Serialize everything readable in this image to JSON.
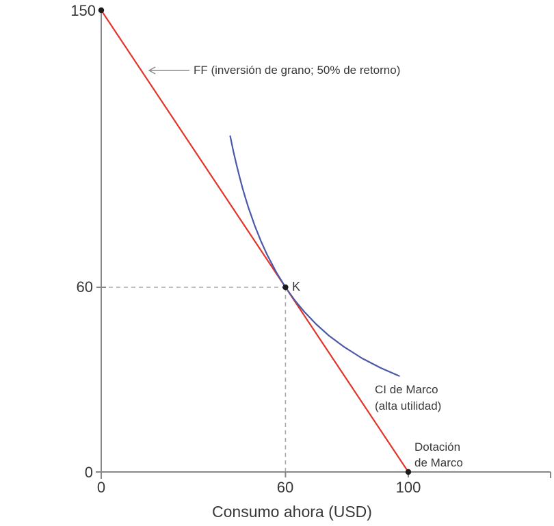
{
  "figure": {
    "background": "#ffffff",
    "text_color": "#383838",
    "axis_color": "#878787",
    "guide_color": "#a8a8a8",
    "marker_color": "#1c1c1c"
  },
  "chart_data": {
    "type": "line",
    "title": "",
    "xlabel": "Consumo ahora (USD)",
    "ylabel": "",
    "xlim": [
      0,
      146
    ],
    "ylim": [
      0,
      150
    ],
    "grid": false,
    "legend_position": "none",
    "x_ticks": [
      {
        "value": 0,
        "label": "0"
      },
      {
        "value": 60,
        "label": "60"
      },
      {
        "value": 100,
        "label": "100"
      }
    ],
    "y_ticks": [
      {
        "value": 0,
        "label": "0",
        "tick": true
      },
      {
        "value": 60,
        "label": "60",
        "tick": true
      },
      {
        "value": 150,
        "label": "150",
        "tick": false
      }
    ],
    "series": [
      {
        "name": "feasible-frontier",
        "label": "FF (inversión de grano; 50% de retorno)",
        "color": "#e1352c",
        "points": [
          [
            0,
            150
          ],
          [
            100,
            0
          ]
        ]
      },
      {
        "name": "indifference-curve",
        "label": "CI de Marco (alta utilidad)",
        "label_lines": [
          "CI de Marco",
          "(alta utilidad)"
        ],
        "color": "#4a58a7",
        "points": [
          [
            42,
            109.1
          ],
          [
            43,
            104.3
          ],
          [
            44,
            100.0
          ],
          [
            45,
            96.0
          ],
          [
            46,
            92.3
          ],
          [
            47,
            88.9
          ],
          [
            48,
            85.7
          ],
          [
            50,
            80.0
          ],
          [
            52,
            75.0
          ],
          [
            54,
            70.6
          ],
          [
            57,
            64.9
          ],
          [
            60,
            60.0
          ],
          [
            63,
            55.8
          ],
          [
            66,
            52.2
          ],
          [
            70,
            48.0
          ],
          [
            74,
            44.4
          ],
          [
            79,
            40.7
          ],
          [
            85,
            36.9
          ],
          [
            91,
            33.8
          ],
          [
            97,
            31.2
          ]
        ]
      }
    ],
    "markers": [
      {
        "name": "ff-intercept",
        "x": 0,
        "y": 150,
        "label": ""
      },
      {
        "name": "K",
        "x": 60,
        "y": 60,
        "label": "K"
      },
      {
        "name": "endowment",
        "x": 100,
        "y": 0,
        "label": "Dotación de Marco",
        "label_lines": [
          "Dotación",
          "de Marco"
        ]
      }
    ],
    "guides": [
      {
        "from": [
          0,
          60
        ],
        "to": [
          60,
          60
        ]
      },
      {
        "from": [
          60,
          60
        ],
        "to": [
          60,
          0
        ]
      }
    ]
  }
}
